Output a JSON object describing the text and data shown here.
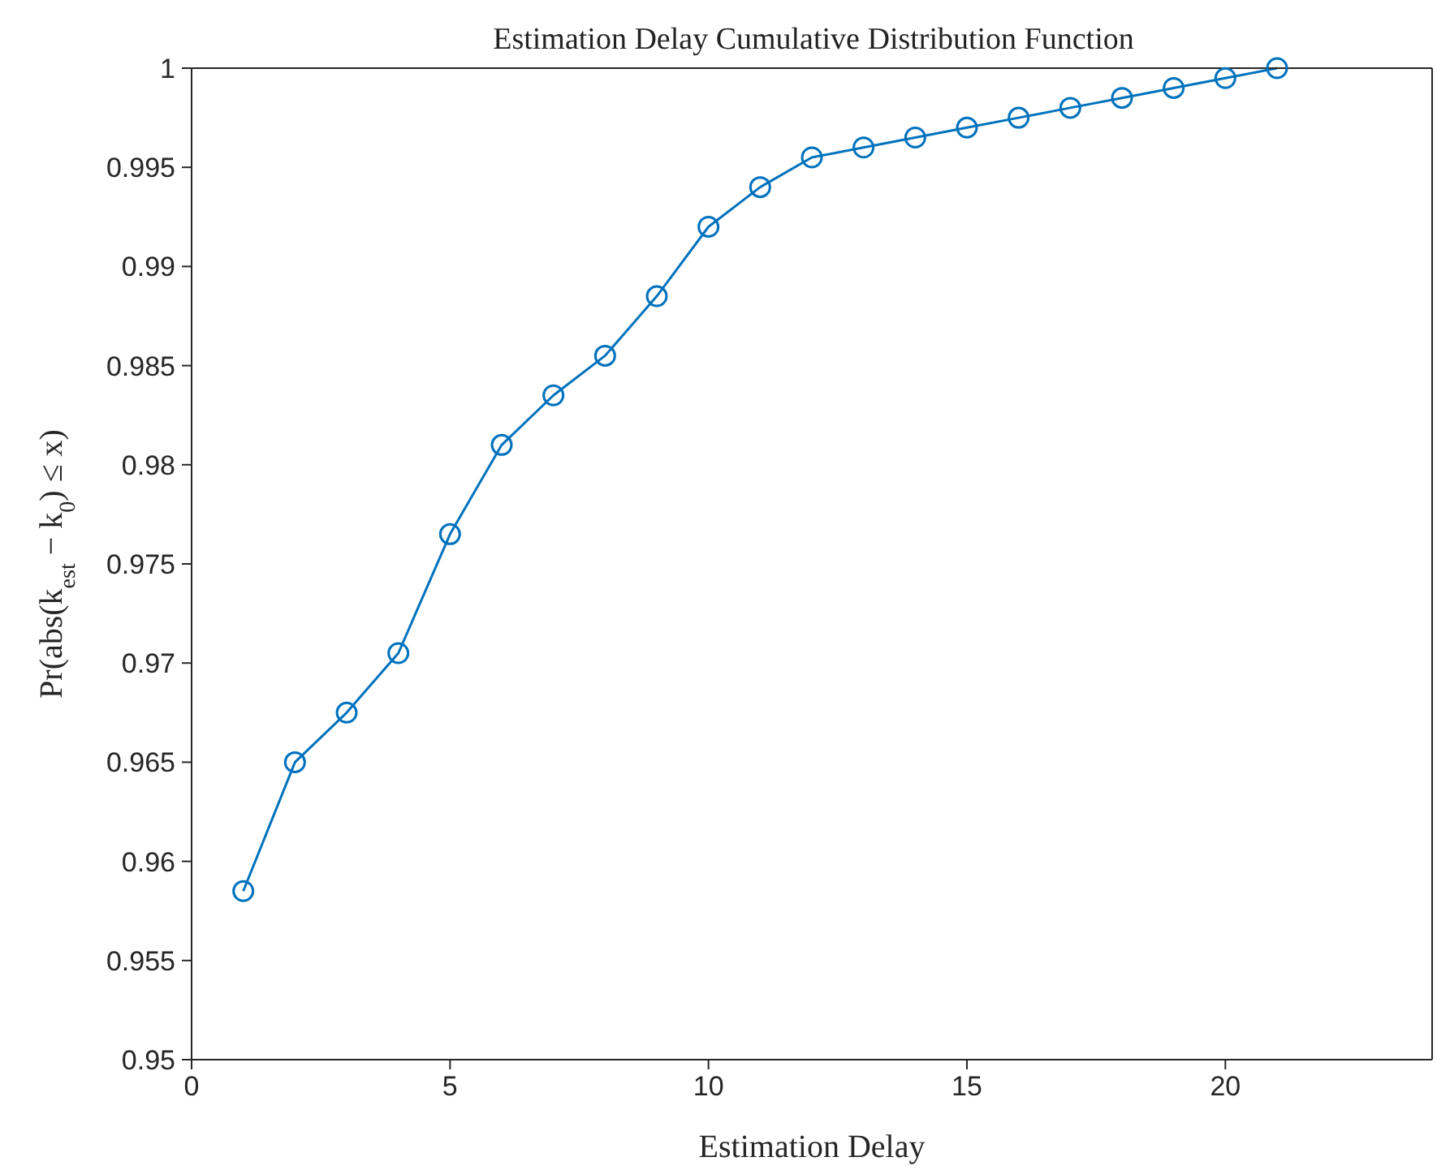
{
  "chart_data": {
    "type": "line",
    "title": "Estimation Delay Cumulative Distribution Function",
    "xlabel": "Estimation Delay",
    "ylabel": "Pr(abs(k$_{est}$ − k$_{0}$) ≤ x)",
    "x": [
      1,
      2,
      3,
      4,
      5,
      6,
      7,
      8,
      9,
      10,
      11,
      12,
      13,
      14,
      15,
      16,
      17,
      18,
      19,
      20,
      21
    ],
    "series": [
      {
        "color": "#0072bd",
        "values": [
          0.9585,
          0.965,
          0.9675,
          0.9705,
          0.9765,
          0.981,
          0.9835,
          0.9855,
          0.9885,
          0.992,
          0.994,
          0.9955,
          0.996,
          0.9965,
          0.997,
          0.9975,
          0.998,
          0.9985,
          0.999,
          0.9995,
          1
        ]
      }
    ],
    "xlim": [
      0,
      24
    ],
    "xticks": [
      0,
      5,
      10,
      15,
      20
    ],
    "ylim": [
      0.95,
      1
    ],
    "yticks": [
      0.95,
      0.955,
      0.96,
      0.965,
      0.97,
      0.975,
      0.98,
      0.985,
      0.99,
      0.995,
      1
    ],
    "marker": "circle",
    "line_style": "solid",
    "grid": false,
    "legend": false
  }
}
